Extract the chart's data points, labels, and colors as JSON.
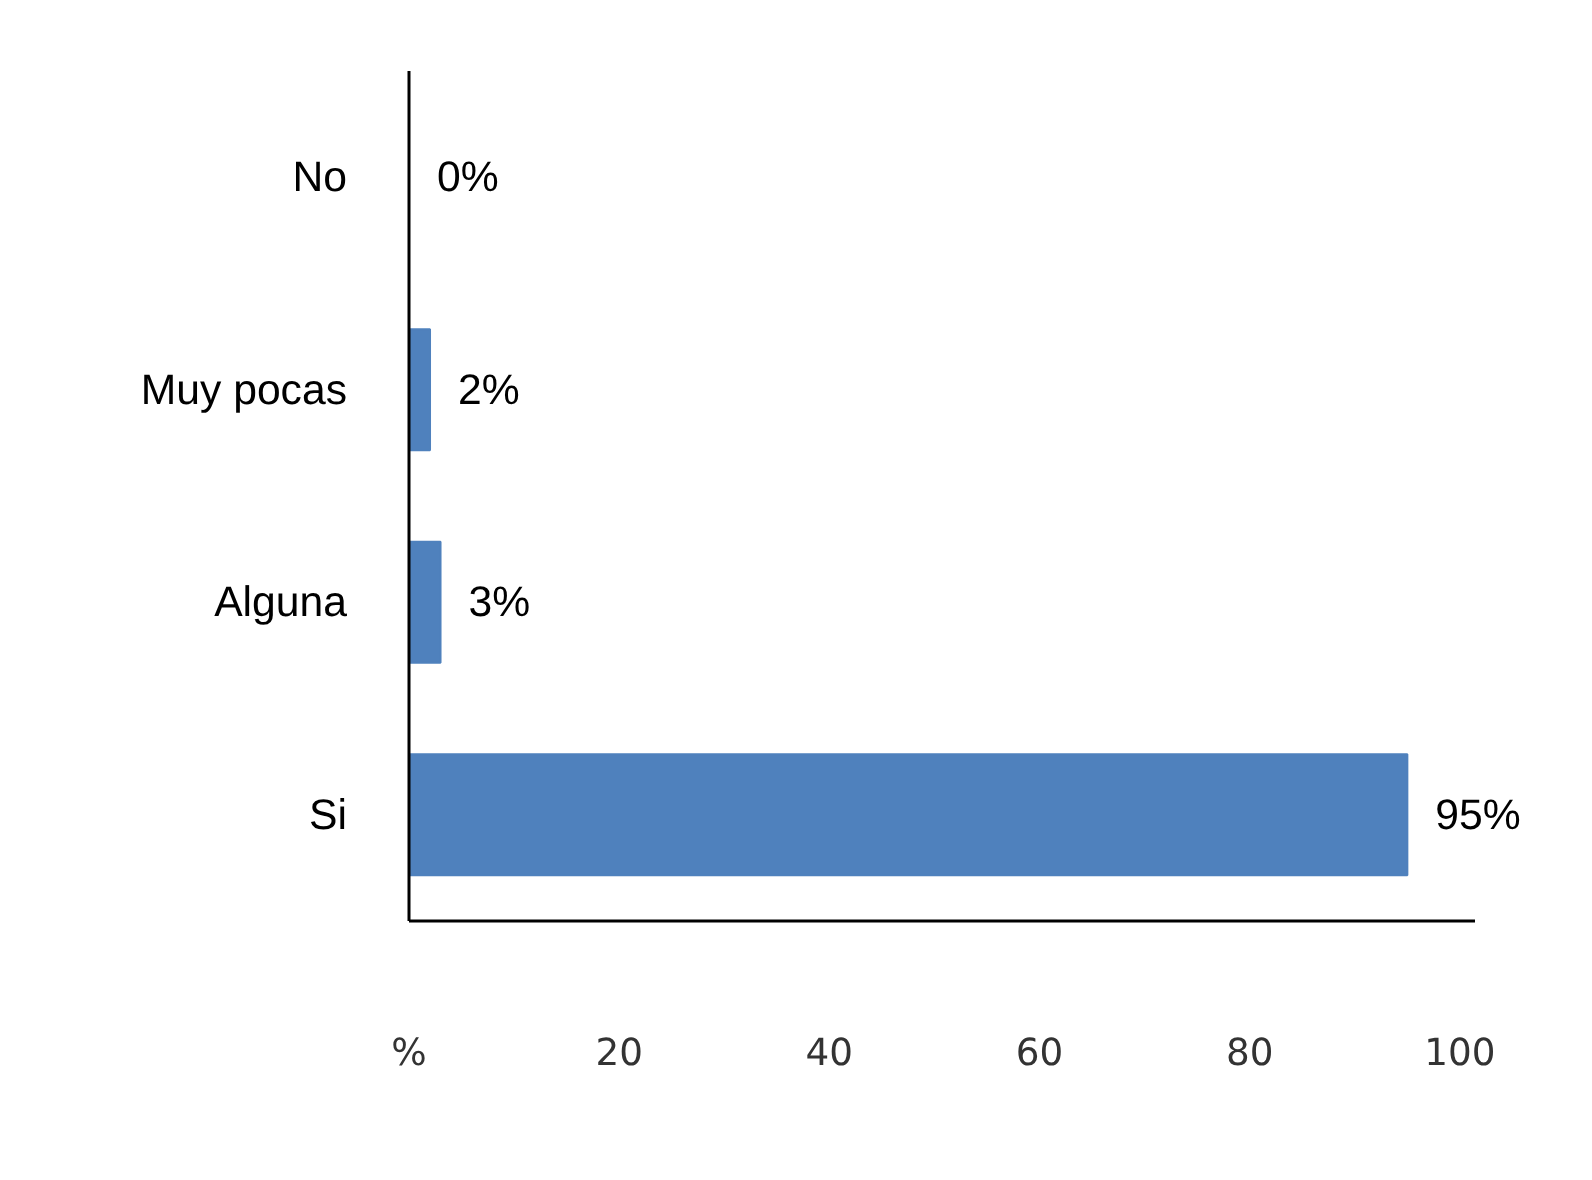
{
  "chart_data": {
    "type": "bar",
    "orientation": "horizontal",
    "categories": [
      "No",
      "Muy pocas",
      "Alguna",
      "Si"
    ],
    "values": [
      0,
      2,
      3,
      95
    ],
    "value_labels": [
      "0%",
      "2%",
      "3%",
      "95%"
    ],
    "color": "#4f81bd",
    "xlim": [
      0,
      101.5
    ],
    "xticks": [
      {
        "value": 0,
        "label": "%"
      },
      20,
      40,
      60,
      80,
      100
    ],
    "grid": false
  }
}
